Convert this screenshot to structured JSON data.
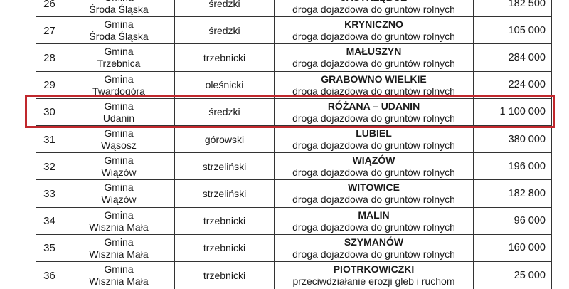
{
  "highlight_color": "#c0282d",
  "rows": [
    {
      "no": "26",
      "gmina": "Gmina",
      "gmina_name": "Środa Śląska",
      "powiat": "średzki",
      "place": "JASTRZĘBCE",
      "desc": "droga dojazdowa do gruntów rolnych",
      "amount": "182 500"
    },
    {
      "no": "27",
      "gmina": "Gmina",
      "gmina_name": "Środa Śląska",
      "powiat": "średzki",
      "place": "KRYNICZNO",
      "desc": "droga dojazdowa do gruntów rolnych",
      "amount": "105 000"
    },
    {
      "no": "28",
      "gmina": "Gmina",
      "gmina_name": "Trzebnica",
      "powiat": "trzebnicki",
      "place": "MAŁUSZYN",
      "desc": "droga dojazdowa do gruntów rolnych",
      "amount": "284 000"
    },
    {
      "no": "29",
      "gmina": "Gmina",
      "gmina_name": "Twardogóra",
      "powiat": "oleśnicki",
      "place": "GRABOWNO WIELKIE",
      "desc": "droga dojazdowa do gruntów rolnych",
      "amount": "224 000"
    },
    {
      "no": "30",
      "gmina": "Gmina",
      "gmina_name": "Udanin",
      "powiat": "średzki",
      "place": "RÓŻANA – UDANIN",
      "desc": "droga dojazdowa do gruntów rolnych",
      "amount": "1 100 000"
    },
    {
      "no": "31",
      "gmina": "Gmina",
      "gmina_name": "Wąsosz",
      "powiat": "górowski",
      "place": "LUBIEL",
      "desc": "droga dojazdowa do gruntów rolnych",
      "amount": "380 000"
    },
    {
      "no": "32",
      "gmina": "Gmina",
      "gmina_name": "Wiązów",
      "powiat": "strzeliński",
      "place": "WIĄZÓW",
      "desc": "droga dojazdowa do gruntów rolnych",
      "amount": "196 000"
    },
    {
      "no": "33",
      "gmina": "Gmina",
      "gmina_name": "Wiązów",
      "powiat": "strzeliński",
      "place": "WITOWICE",
      "desc": "droga dojazdowa do gruntów rolnych",
      "amount": "182 800"
    },
    {
      "no": "34",
      "gmina": "Gmina",
      "gmina_name": "Wisznia Mała",
      "powiat": "trzebnicki",
      "place": "MALIN",
      "desc": "droga dojazdowa do gruntów rolnych",
      "amount": "96 000"
    },
    {
      "no": "35",
      "gmina": "Gmina",
      "gmina_name": "Wisznia Mała",
      "powiat": "trzebnicki",
      "place": "SZYMANÓW",
      "desc": "droga dojazdowa do gruntów rolnych",
      "amount": "160 000"
    },
    {
      "no": "36",
      "gmina": "Gmina",
      "gmina_name": "Wisznia Mała",
      "powiat": "trzebnicki",
      "place": "PIOTRKOWICZKI",
      "desc": "przeciwdziałanie erozji gleb i ruchom",
      "amount": "25 000"
    }
  ]
}
